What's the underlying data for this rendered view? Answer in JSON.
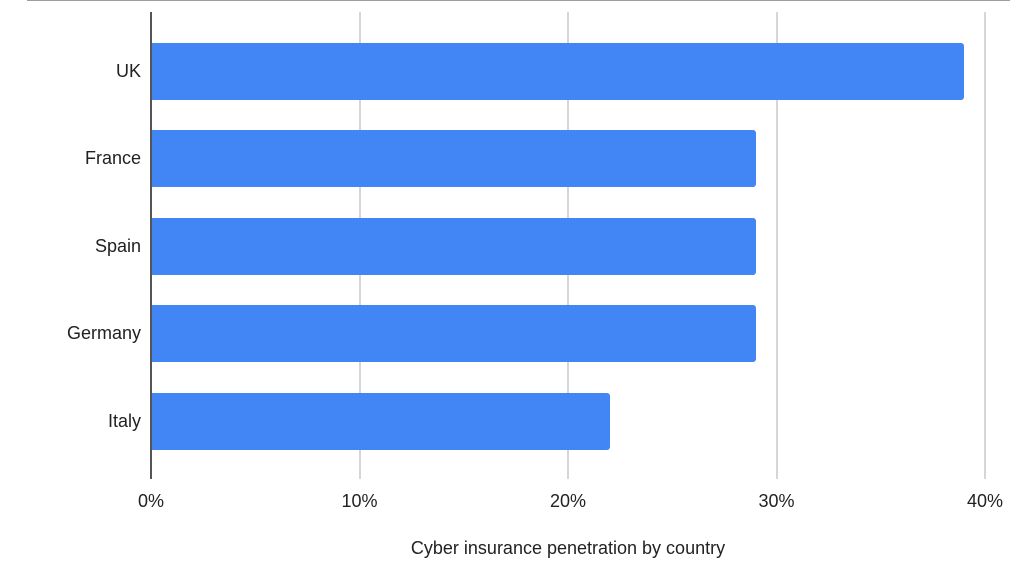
{
  "chart_data": {
    "type": "bar",
    "orientation": "horizontal",
    "title": "",
    "xlabel": "Cyber insurance penetration by country",
    "ylabel": "",
    "categories": [
      "UK",
      "France",
      "Spain",
      "Germany",
      "Italy"
    ],
    "values": [
      39,
      29,
      29,
      29,
      22
    ],
    "unit": "%",
    "xlim": [
      0,
      40
    ],
    "x_ticks": [
      "0%",
      "10%",
      "20%",
      "30%",
      "40%"
    ],
    "grid": true,
    "legend": null,
    "bar_color": "#4285F4"
  }
}
